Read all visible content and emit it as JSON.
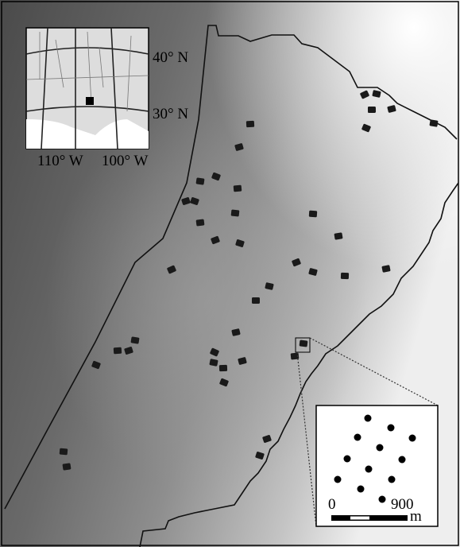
{
  "locator": {
    "lat_labels": [
      "40° N",
      "30° N"
    ],
    "lon_labels": [
      "110° W",
      "100° W"
    ]
  },
  "zoom_inset": {
    "scale_labels": [
      "0",
      "900"
    ],
    "unit": "m"
  }
}
